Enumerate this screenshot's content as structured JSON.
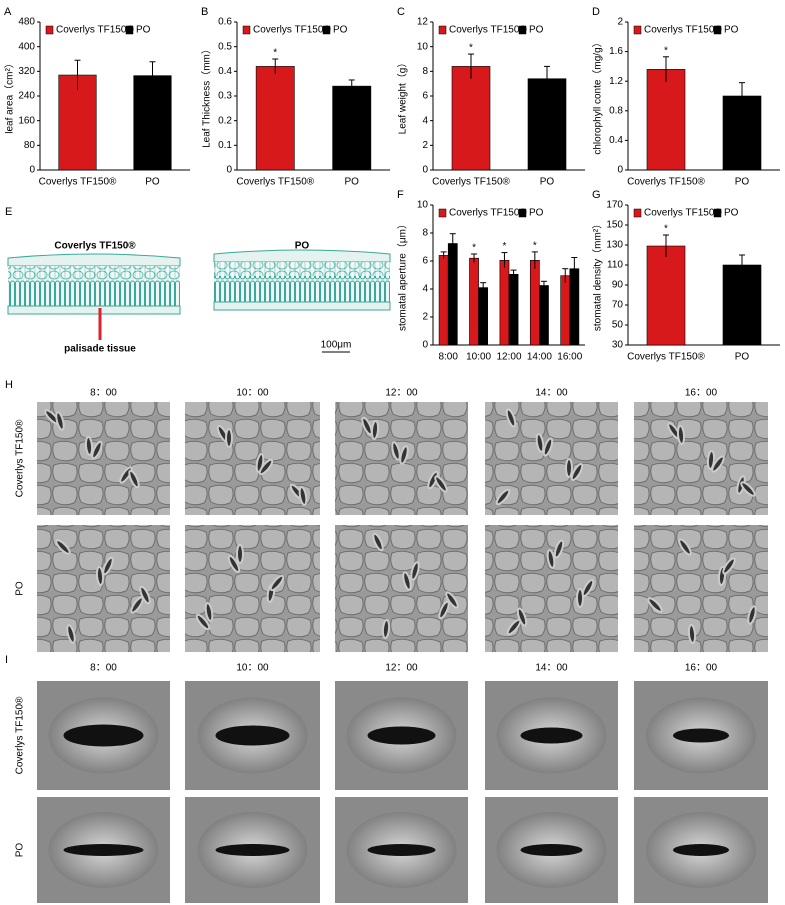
{
  "chart_data": [
    {
      "panel": "A",
      "type": "bar",
      "ylabel": "leaf area（cm²）",
      "categories": [
        "Coverlys TF150®",
        "PO"
      ],
      "values": [
        308,
        306
      ],
      "errors": [
        48,
        45
      ],
      "colors": [
        "#d7191c",
        "#000000"
      ],
      "significance": [
        null,
        null
      ],
      "legend": [
        {
          "name": "Coverlys TF150®",
          "color": "#d7191c"
        },
        {
          "name": "PO",
          "color": "#000000"
        }
      ],
      "ylim": [
        0,
        480
      ],
      "yticks": [
        0,
        80,
        160,
        240,
        320,
        400,
        480
      ]
    },
    {
      "panel": "B",
      "type": "bar",
      "ylabel": "Leaf Thickness（mm）",
      "categories": [
        "Coverlys TF150®",
        "PO"
      ],
      "values": [
        0.42,
        0.34
      ],
      "errors": [
        0.03,
        0.025
      ],
      "colors": [
        "#d7191c",
        "#000000"
      ],
      "significance": [
        "*",
        null
      ],
      "legend": [
        {
          "name": "Coverlys TF150®",
          "color": "#d7191c"
        },
        {
          "name": "PO",
          "color": "#000000"
        }
      ],
      "ylim": [
        0,
        0.6
      ],
      "yticks": [
        0,
        0.1,
        0.2,
        0.3,
        0.4,
        0.5,
        0.6
      ]
    },
    {
      "panel": "C",
      "type": "bar",
      "ylabel": "Leaf weight（g）",
      "categories": [
        "Coverlys TF150®",
        "PO"
      ],
      "values": [
        8.4,
        7.4
      ],
      "errors": [
        1.0,
        1.0
      ],
      "colors": [
        "#d7191c",
        "#000000"
      ],
      "significance": [
        "*",
        null
      ],
      "legend": [
        {
          "name": "Coverlys TF150®",
          "color": "#d7191c"
        },
        {
          "name": "PO",
          "color": "#000000"
        }
      ],
      "ylim": [
        0,
        12
      ],
      "yticks": [
        0,
        2,
        4,
        6,
        8,
        10,
        12
      ]
    },
    {
      "panel": "D",
      "type": "bar",
      "ylabel": "chlorophyll conte（mg/g）",
      "categories": [
        "Coverlys TF150®",
        "PO"
      ],
      "values": [
        1.36,
        1.0
      ],
      "errors": [
        0.17,
        0.18
      ],
      "colors": [
        "#d7191c",
        "#000000"
      ],
      "significance": [
        "*",
        null
      ],
      "legend": [
        {
          "name": "Coverlys TF150®",
          "color": "#d7191c"
        },
        {
          "name": "PO",
          "color": "#000000"
        }
      ],
      "ylim": [
        0,
        2
      ],
      "yticks": [
        0,
        0.4,
        0.8,
        1.2,
        1.6,
        2
      ]
    },
    {
      "panel": "F",
      "type": "grouped-bar",
      "ylabel": "stomatal aperture（μm）",
      "categories": [
        "8:00",
        "10:00",
        "12:00",
        "14:00",
        "16:00"
      ],
      "series": [
        {
          "name": "Coverlys TF150®",
          "color": "#d7191c",
          "values": [
            6.4,
            6.2,
            6.05,
            6.05,
            4.95
          ],
          "errors": [
            0.25,
            0.3,
            0.55,
            0.6,
            0.5
          ],
          "significance": [
            null,
            "*",
            "*",
            "*",
            null
          ]
        },
        {
          "name": "PO",
          "color": "#000000",
          "values": [
            7.25,
            4.1,
            5.05,
            4.25,
            5.45
          ],
          "errors": [
            0.7,
            0.35,
            0.3,
            0.3,
            0.8
          ]
        }
      ],
      "ylim": [
        0,
        10
      ],
      "yticks": [
        0,
        2,
        4,
        6,
        8,
        10
      ]
    },
    {
      "panel": "G",
      "type": "bar",
      "ylabel": "stomatal density（mm²）",
      "categories": [
        "Coverlys TF150®",
        "PO"
      ],
      "values": [
        129,
        110
      ],
      "errors": [
        11,
        10
      ],
      "colors": [
        "#d7191c",
        "#000000"
      ],
      "significance": [
        "*",
        null
      ],
      "legend": [
        {
          "name": "Coverlys TF150®",
          "color": "#d7191c"
        },
        {
          "name": "PO",
          "color": "#000000"
        }
      ],
      "ylim": [
        30,
        170
      ],
      "yticks": [
        30,
        50,
        70,
        90,
        110,
        130,
        150,
        170
      ]
    }
  ],
  "figure": {
    "E": {
      "panel": "E",
      "left_label": "Coverlys TF150®",
      "right_label": "PO",
      "annotation": "palisade tissue",
      "scale": "100μm"
    },
    "H": {
      "panel": "H",
      "times": [
        "8：00",
        "10：00",
        "12：00",
        "14：00",
        "16：00"
      ],
      "rows": [
        "Coverlys TF150®",
        "PO"
      ]
    },
    "I": {
      "panel": "I",
      "times": [
        "8：00",
        "10：00",
        "12：00",
        "14：00",
        "16：00"
      ],
      "rows": [
        "Coverlys TF150®",
        "PO"
      ]
    }
  }
}
